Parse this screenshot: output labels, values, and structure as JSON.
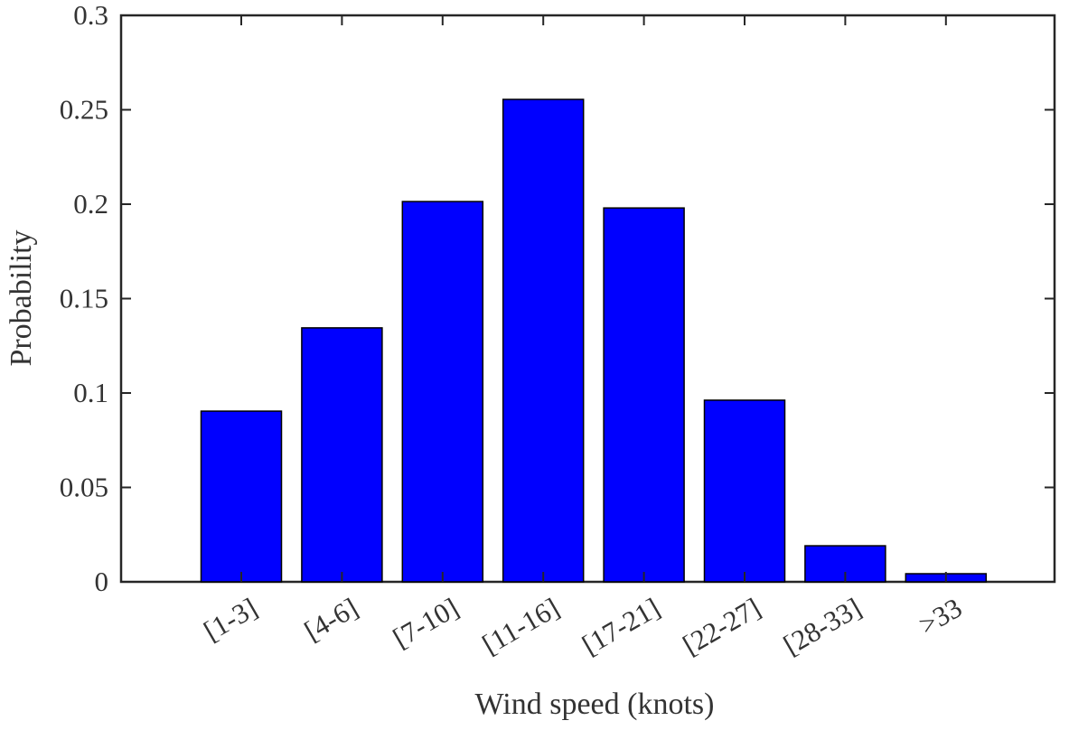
{
  "chart_data": {
    "type": "bar",
    "x_label": "Wind speed (knots)",
    "y_label": "Probability",
    "categories": [
      "[1-3]",
      "[4-6]",
      "[7-10]",
      "[11-16]",
      "[17-21]",
      "[22-27]",
      "[28-33]",
      ">33"
    ],
    "values": [
      0.0904,
      0.1345,
      0.2014,
      0.2555,
      0.198,
      0.0962,
      0.0191,
      0.0043
    ],
    "color": "#0000ff",
    "ylim": [
      0,
      0.3
    ],
    "yticks": [
      0,
      0.05,
      0.1,
      0.15,
      0.2,
      0.25,
      0.3
    ],
    "grid": false
  }
}
